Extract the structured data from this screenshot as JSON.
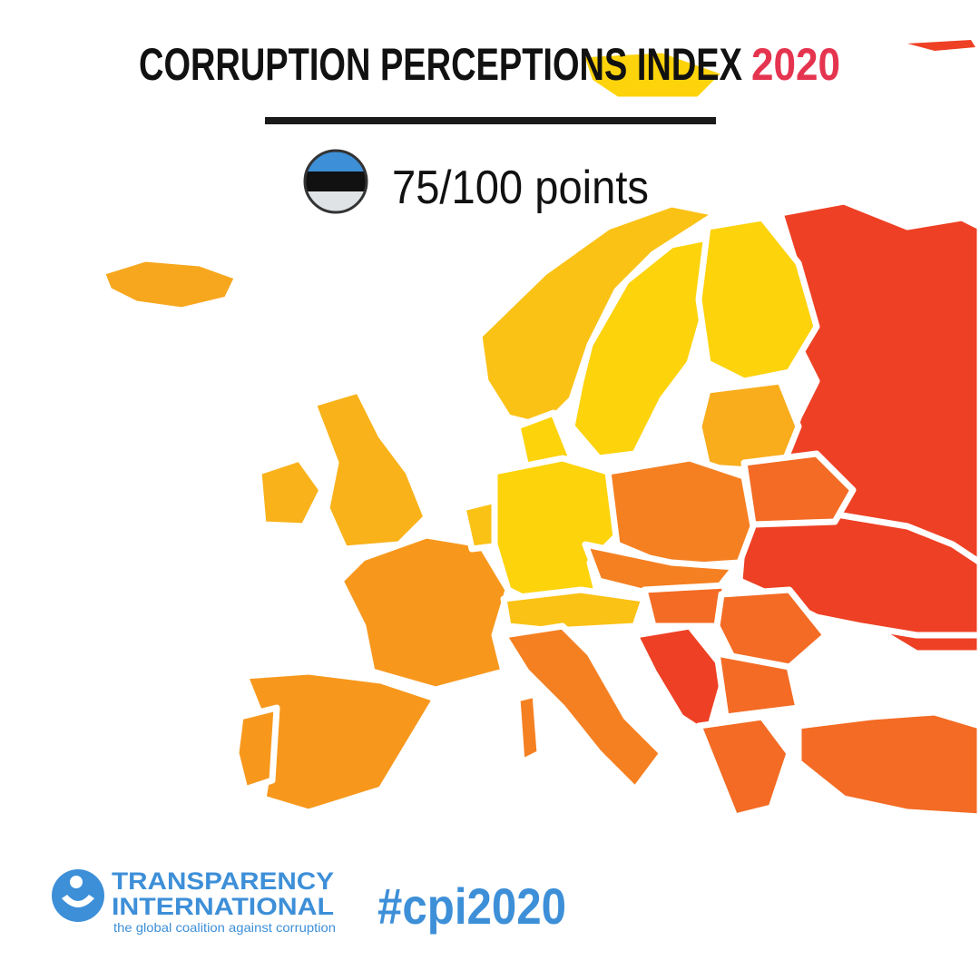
{
  "header": {
    "title": "CORRUPTION PERCEPTIONS INDEX",
    "year": "2020",
    "score": "75/100 points"
  },
  "footer": {
    "org_line1": "TRANSPARENCY",
    "org_line2": "INTERNATIONAL",
    "tagline": "the global coalition against corruption",
    "hashtag": "#cpi2020"
  }
}
